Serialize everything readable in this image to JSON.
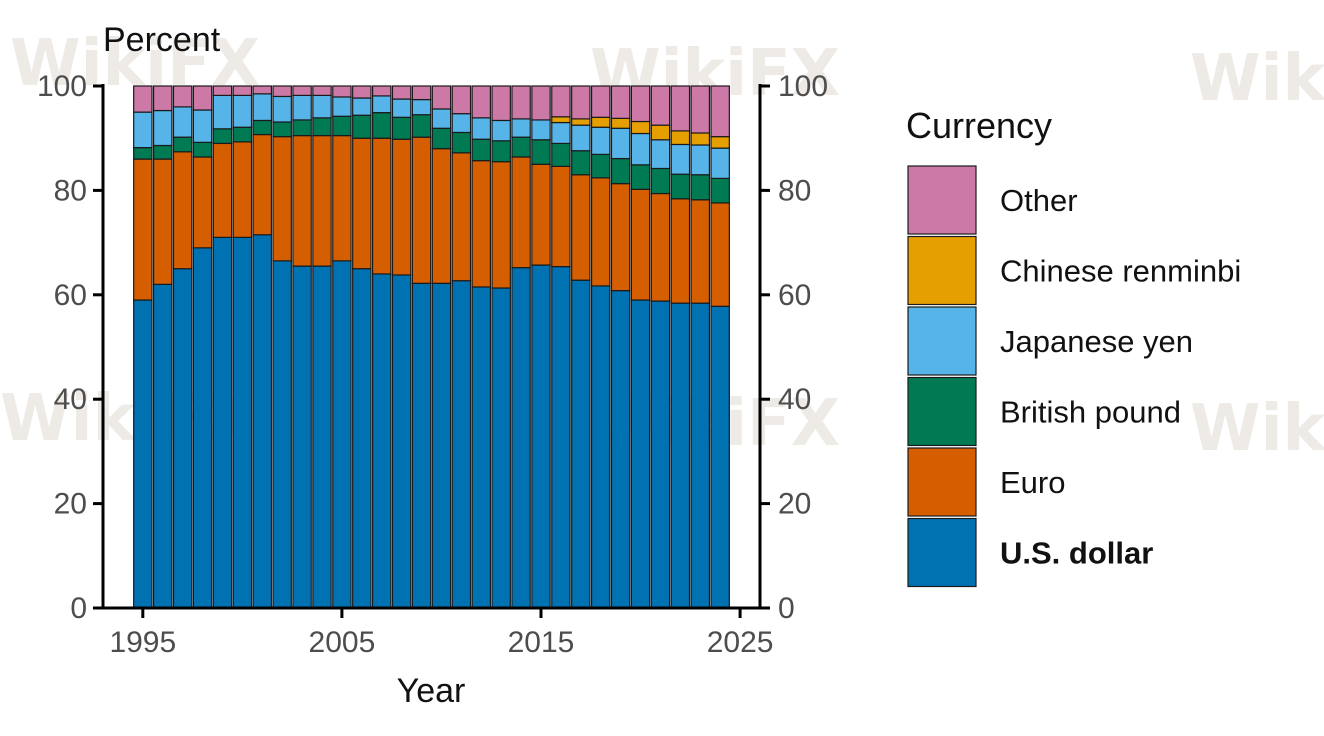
{
  "watermark": "WikiFX",
  "chart_data": {
    "type": "bar",
    "stacked": true,
    "y_title": "Percent",
    "x_title": "Year",
    "ylim": [
      0,
      100
    ],
    "xlim": [
      1993,
      2026
    ],
    "y_ticks": [
      0,
      20,
      40,
      60,
      80,
      100
    ],
    "x_ticks": [
      1995,
      2005,
      2015,
      2025
    ],
    "right_axis": true,
    "grid": false,
    "legend_position": "right",
    "legend_title": "Currency",
    "categories": [
      1995,
      1996,
      1997,
      1998,
      1999,
      2000,
      2001,
      2002,
      2003,
      2004,
      2005,
      2006,
      2007,
      2008,
      2009,
      2010,
      2011,
      2012,
      2013,
      2014,
      2015,
      2016,
      2017,
      2018,
      2019,
      2020,
      2021,
      2022,
      2023,
      2024
    ],
    "series": [
      {
        "name": "U.S. dollar",
        "color": "#0072B2",
        "values": [
          59,
          62,
          65,
          69,
          71,
          71,
          71.5,
          66.5,
          65.5,
          65.5,
          66.5,
          65,
          64,
          63.8,
          62.2,
          62.2,
          62.7,
          61.5,
          61.3,
          65.2,
          65.7,
          65.4,
          62.8,
          61.7,
          60.8,
          59,
          58.8,
          58.4,
          58.4,
          57.8
        ]
      },
      {
        "name": "Euro",
        "color": "#D55E00",
        "values": [
          27,
          24,
          22.4,
          17.4,
          18,
          18.3,
          19.2,
          23.8,
          25,
          25,
          24,
          25,
          26,
          26,
          28,
          25.8,
          24.5,
          24.2,
          24.2,
          21.2,
          19.3,
          19.2,
          20.2,
          20.7,
          20.5,
          21.2,
          20.6,
          20,
          19.8,
          19.8
        ]
      },
      {
        "name": "British pound",
        "color": "#007A52",
        "values": [
          2.2,
          2.6,
          2.8,
          2.8,
          2.8,
          2.8,
          2.7,
          2.8,
          3,
          3.4,
          3.7,
          4.4,
          4.9,
          4.2,
          4.3,
          3.9,
          3.9,
          4.1,
          4,
          3.8,
          4.7,
          4.4,
          4.6,
          4.5,
          4.8,
          4.7,
          4.8,
          4.7,
          4.8,
          4.7
        ]
      },
      {
        "name": "Japanese yen",
        "color": "#56B4E9",
        "values": [
          6.8,
          6.7,
          5.8,
          6.2,
          6.4,
          6.1,
          5.1,
          4.9,
          4.7,
          4.3,
          3.7,
          3.3,
          3.2,
          3.5,
          2.9,
          3.7,
          3.6,
          4.1,
          3.9,
          3.5,
          3.8,
          4,
          4.9,
          5.2,
          5.8,
          6,
          5.5,
          5.7,
          5.7,
          5.8
        ]
      },
      {
        "name": "Chinese renminbi",
        "color": "#E69F00",
        "values": [
          0,
          0,
          0,
          0,
          0,
          0,
          0,
          0,
          0,
          0,
          0,
          0,
          0,
          0,
          0,
          0,
          0,
          0,
          0,
          0,
          0,
          1.1,
          1.2,
          1.9,
          1.9,
          2.3,
          2.8,
          2.6,
          2.3,
          2.2
        ]
      },
      {
        "name": "Other",
        "color": "#CC79A7",
        "values": [
          5,
          4.7,
          4,
          4.6,
          1.8,
          1.8,
          1.5,
          2,
          1.8,
          1.8,
          2.1,
          2.3,
          1.9,
          2.5,
          2.6,
          4.4,
          5.3,
          6.1,
          6.6,
          6.3,
          6.5,
          5.9,
          6.3,
          6,
          6.2,
          6.8,
          7.5,
          8.6,
          9,
          9.7
        ]
      }
    ]
  }
}
